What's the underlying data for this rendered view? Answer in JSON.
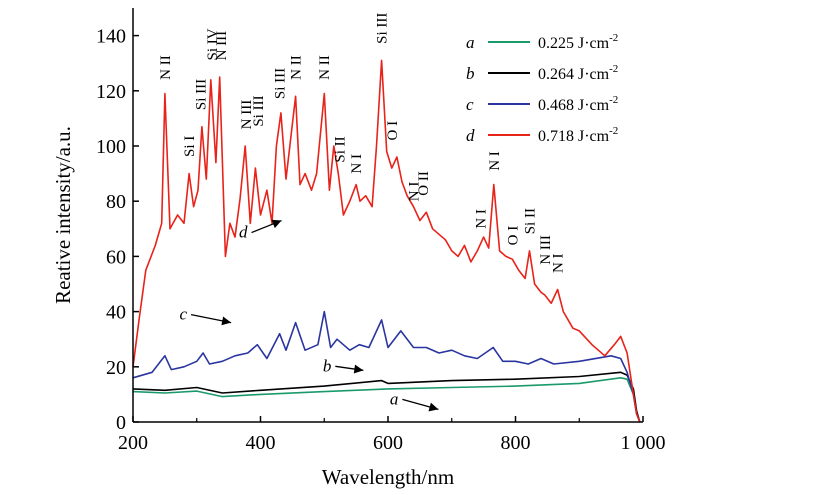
{
  "chart_data": {
    "type": "line",
    "title": "",
    "xlabel": "Wavelength/nm",
    "ylabel": "Reative intensity/a.u.",
    "xlim": [
      200,
      1000
    ],
    "ylim": [
      0,
      150
    ],
    "x_ticks": [
      "200",
      "400",
      "600",
      "800",
      "1 000"
    ],
    "y_ticks": [
      "0",
      "20",
      "40",
      "60",
      "80",
      "100",
      "120",
      "140"
    ],
    "legend_position": "top-right",
    "series": [
      {
        "name": "a",
        "label": "0.225 J·cm",
        "unit_exponent": "-2",
        "color": "#1a9a6b",
        "points": [
          [
            200,
            11
          ],
          [
            250,
            10.5
          ],
          [
            300,
            11.2
          ],
          [
            340,
            9.2
          ],
          [
            400,
            10
          ],
          [
            500,
            11
          ],
          [
            600,
            12
          ],
          [
            700,
            12.5
          ],
          [
            800,
            13
          ],
          [
            900,
            14
          ],
          [
            965,
            16
          ],
          [
            975,
            15.5
          ],
          [
            985,
            10
          ],
          [
            990,
            3
          ],
          [
            995,
            0
          ]
        ]
      },
      {
        "name": "b",
        "label": "0.264 J·cm",
        "unit_exponent": "-2",
        "color": "#000000",
        "points": [
          [
            200,
            12
          ],
          [
            250,
            11.5
          ],
          [
            300,
            12.5
          ],
          [
            340,
            10.5
          ],
          [
            400,
            11.5
          ],
          [
            500,
            13
          ],
          [
            590,
            15
          ],
          [
            600,
            14
          ],
          [
            700,
            15
          ],
          [
            800,
            15.5
          ],
          [
            900,
            16.5
          ],
          [
            965,
            18
          ],
          [
            975,
            17
          ],
          [
            985,
            12
          ],
          [
            990,
            4
          ],
          [
            995,
            0
          ]
        ]
      },
      {
        "name": "c",
        "label": "0.468 J·cm",
        "unit_exponent": "-2",
        "color": "#2a35a0",
        "points": [
          [
            200,
            16
          ],
          [
            230,
            18
          ],
          [
            250,
            24
          ],
          [
            260,
            19
          ],
          [
            280,
            20
          ],
          [
            300,
            22
          ],
          [
            310,
            25
          ],
          [
            320,
            21
          ],
          [
            340,
            22
          ],
          [
            360,
            24
          ],
          [
            380,
            25
          ],
          [
            395,
            28
          ],
          [
            410,
            23
          ],
          [
            430,
            32
          ],
          [
            440,
            26
          ],
          [
            455,
            36
          ],
          [
            470,
            26
          ],
          [
            490,
            28
          ],
          [
            500,
            40
          ],
          [
            510,
            27
          ],
          [
            520,
            30
          ],
          [
            540,
            26
          ],
          [
            555,
            28
          ],
          [
            570,
            27
          ],
          [
            590,
            37
          ],
          [
            600,
            27
          ],
          [
            610,
            30
          ],
          [
            620,
            33
          ],
          [
            640,
            27
          ],
          [
            660,
            27
          ],
          [
            680,
            25
          ],
          [
            700,
            26
          ],
          [
            720,
            24
          ],
          [
            740,
            23
          ],
          [
            765,
            27
          ],
          [
            780,
            22
          ],
          [
            800,
            22
          ],
          [
            820,
            21
          ],
          [
            840,
            23
          ],
          [
            860,
            21
          ],
          [
            900,
            22
          ],
          [
            950,
            24
          ],
          [
            965,
            23
          ],
          [
            975,
            18
          ],
          [
            985,
            10
          ],
          [
            990,
            3
          ],
          [
            995,
            0
          ]
        ]
      },
      {
        "name": "d",
        "label": "0.718 J·cm",
        "unit_exponent": "-2",
        "color": "#e8231a",
        "points": [
          [
            200,
            20
          ],
          [
            210,
            38
          ],
          [
            220,
            55
          ],
          [
            235,
            64
          ],
          [
            245,
            72
          ],
          [
            250,
            119
          ],
          [
            258,
            70
          ],
          [
            270,
            75
          ],
          [
            280,
            72
          ],
          [
            288,
            90
          ],
          [
            295,
            78
          ],
          [
            302,
            84
          ],
          [
            308,
            107
          ],
          [
            315,
            88
          ],
          [
            322,
            124
          ],
          [
            330,
            94
          ],
          [
            336,
            125
          ],
          [
            345,
            60
          ],
          [
            352,
            72
          ],
          [
            360,
            67
          ],
          [
            368,
            81
          ],
          [
            376,
            100
          ],
          [
            384,
            72
          ],
          [
            392,
            92
          ],
          [
            400,
            75
          ],
          [
            410,
            84
          ],
          [
            418,
            72
          ],
          [
            425,
            100
          ],
          [
            432,
            112
          ],
          [
            440,
            88
          ],
          [
            450,
            108
          ],
          [
            455,
            118
          ],
          [
            462,
            86
          ],
          [
            470,
            90
          ],
          [
            480,
            84
          ],
          [
            488,
            90
          ],
          [
            500,
            119
          ],
          [
            508,
            84
          ],
          [
            515,
            100
          ],
          [
            522,
            90
          ],
          [
            530,
            75
          ],
          [
            540,
            80
          ],
          [
            550,
            86
          ],
          [
            556,
            80
          ],
          [
            565,
            82
          ],
          [
            575,
            78
          ],
          [
            582,
            100
          ],
          [
            590,
            131
          ],
          [
            598,
            98
          ],
          [
            606,
            92
          ],
          [
            614,
            96
          ],
          [
            622,
            87
          ],
          [
            630,
            82
          ],
          [
            640,
            78
          ],
          [
            650,
            73
          ],
          [
            660,
            76
          ],
          [
            670,
            70
          ],
          [
            680,
            68
          ],
          [
            690,
            66
          ],
          [
            700,
            62
          ],
          [
            710,
            60
          ],
          [
            720,
            64
          ],
          [
            730,
            58
          ],
          [
            740,
            62
          ],
          [
            750,
            67
          ],
          [
            758,
            63
          ],
          [
            766,
            86
          ],
          [
            775,
            62
          ],
          [
            785,
            60
          ],
          [
            795,
            59
          ],
          [
            805,
            55
          ],
          [
            815,
            52
          ],
          [
            822,
            62
          ],
          [
            830,
            50
          ],
          [
            840,
            47
          ],
          [
            846,
            46
          ],
          [
            856,
            43
          ],
          [
            866,
            48
          ],
          [
            875,
            40
          ],
          [
            890,
            34
          ],
          [
            900,
            33
          ],
          [
            920,
            28
          ],
          [
            940,
            24
          ],
          [
            955,
            28
          ],
          [
            965,
            31
          ],
          [
            975,
            25
          ],
          [
            985,
            10
          ],
          [
            990,
            3
          ],
          [
            995,
            0
          ]
        ]
      }
    ],
    "annotations": [
      {
        "text": "N II",
        "x": 250,
        "y": 124
      },
      {
        "text": "Si I",
        "x": 288,
        "y": 96
      },
      {
        "text": "Si III",
        "x": 306,
        "y": 113
      },
      {
        "text": "Si IV",
        "x": 324,
        "y": 131
      },
      {
        "text": "N III",
        "x": 338,
        "y": 131
      },
      {
        "text": "N III",
        "x": 377,
        "y": 106
      },
      {
        "text": "Si III",
        "x": 396,
        "y": 107
      },
      {
        "text": "Si III",
        "x": 430,
        "y": 117
      },
      {
        "text": "N II",
        "x": 455,
        "y": 124
      },
      {
        "text": "N II",
        "x": 500,
        "y": 124
      },
      {
        "text": "Si II",
        "x": 524,
        "y": 94
      },
      {
        "text": "N I",
        "x": 550,
        "y": 90
      },
      {
        "text": "Si III",
        "x": 590,
        "y": 137
      },
      {
        "text": "O I",
        "x": 606,
        "y": 102
      },
      {
        "text": "N I",
        "x": 640,
        "y": 80
      },
      {
        "text": "O II",
        "x": 655,
        "y": 82
      },
      {
        "text": "N I",
        "x": 745,
        "y": 70
      },
      {
        "text": "N I",
        "x": 766,
        "y": 91
      },
      {
        "text": "O I",
        "x": 795,
        "y": 64
      },
      {
        "text": "Si II",
        "x": 822,
        "y": 68
      },
      {
        "text": "N III",
        "x": 846,
        "y": 57
      },
      {
        "text": "N I",
        "x": 866,
        "y": 54
      }
    ],
    "curve_labels": [
      {
        "text": "d",
        "x": 460,
        "y": 69
      },
      {
        "text": "c",
        "x": 328,
        "y": 36
      },
      {
        "text": "b",
        "x": 515,
        "y": 18
      },
      {
        "text": "a",
        "x": 630,
        "y": 8
      }
    ]
  }
}
